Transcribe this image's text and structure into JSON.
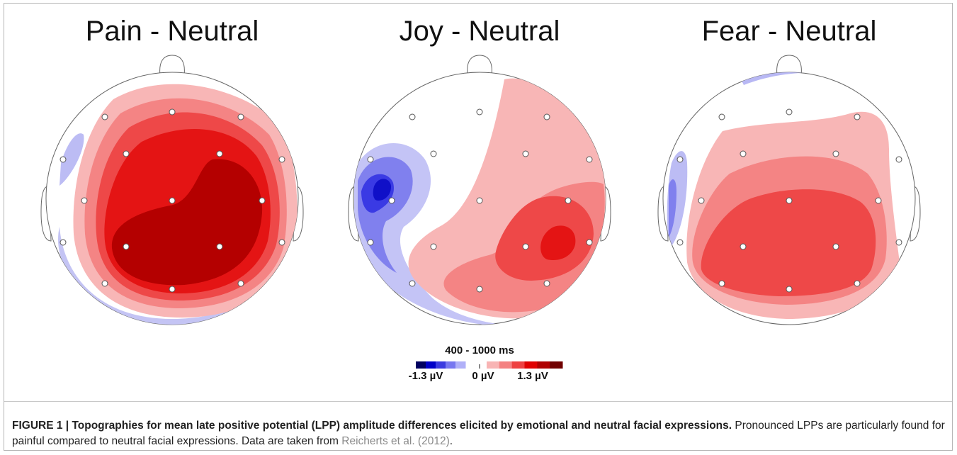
{
  "panels": [
    {
      "title": "Pain - Neutral"
    },
    {
      "title": "Joy - Neutral"
    },
    {
      "title": "Fear - Neutral"
    }
  ],
  "colorbar": {
    "title": "400 - 1000 ms",
    "min_label": "-1.3 µV",
    "zero_label": "0 µV",
    "max_label": "1.3 µV",
    "colors_negative": [
      "#000060",
      "#0000c8",
      "#3a3ae0",
      "#7777f0",
      "#b0b0f8"
    ],
    "colors_positive": [
      "#f8b4b4",
      "#f48080",
      "#ee4040",
      "#e00000",
      "#b00000",
      "#700000"
    ]
  },
  "caption": {
    "figure_label": "FIGURE 1 | ",
    "bold_text": "Topographies for mean late positive potential (LPP) amplitude differences elicited by emotional and neutral facial expressions.",
    "body": " Pronounced LPPs are particularly found for painful compared to neutral facial expressions. Data are taken from ",
    "reference": "Reicherts et al. (2012)",
    "end": "."
  }
}
